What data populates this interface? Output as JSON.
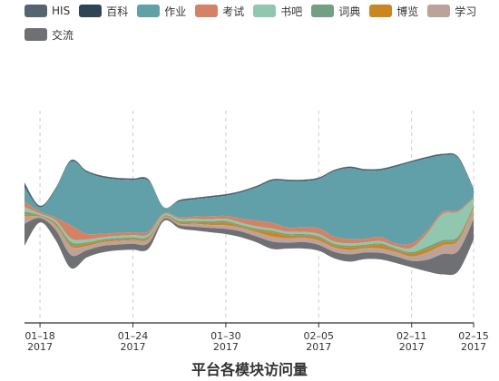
{
  "chart_data": {
    "type": "area",
    "subtype": "streamgraph",
    "title": "平台各模块访问量",
    "x_tick_labels": [
      {
        "date": "2017-01-18",
        "line1": "01–18",
        "line2": "2017"
      },
      {
        "date": "2017-01-24",
        "line1": "01–24",
        "line2": "2017"
      },
      {
        "date": "2017-01-30",
        "line1": "01–30",
        "line2": "2017"
      },
      {
        "date": "2017-02-05",
        "line1": "02–05",
        "line2": "2017"
      },
      {
        "date": "2017-02-11",
        "line1": "02–11",
        "line2": "2017"
      },
      {
        "date": "2017-02-15",
        "line1": "02–15",
        "line2": "2017"
      }
    ],
    "xlim": [
      "2017-01-17",
      "2017-02-15"
    ],
    "grid": "vertical dashed",
    "legend_position": "top-left",
    "x": [
      "2017-01-17",
      "2017-01-18",
      "2017-01-19",
      "2017-01-20",
      "2017-01-21",
      "2017-01-22",
      "2017-01-23",
      "2017-01-24",
      "2017-01-25",
      "2017-01-26",
      "2017-01-27",
      "2017-01-28",
      "2017-01-29",
      "2017-01-30",
      "2017-01-31",
      "2017-02-01",
      "2017-02-02",
      "2017-02-03",
      "2017-02-04",
      "2017-02-05",
      "2017-02-06",
      "2017-02-07",
      "2017-02-08",
      "2017-02-09",
      "2017-02-10",
      "2017-02-11",
      "2017-02-12",
      "2017-02-13",
      "2017-02-14",
      "2017-02-15"
    ],
    "series": [
      {
        "name": "HIS",
        "color": "#546570",
        "values": [
          3,
          1,
          1,
          1,
          1,
          1,
          1,
          1,
          1,
          0,
          1,
          1,
          1,
          1,
          1,
          1,
          1,
          1,
          1,
          1,
          1,
          1,
          1,
          1,
          1,
          1,
          1,
          1,
          1,
          1
        ]
      },
      {
        "name": "百科",
        "color": "#2f4554",
        "values": [
          3,
          1,
          1,
          1,
          1,
          1,
          1,
          1,
          1,
          0,
          1,
          1,
          1,
          1,
          1,
          1,
          1,
          1,
          1,
          1,
          1,
          1,
          1,
          1,
          1,
          1,
          1,
          1,
          1,
          1
        ]
      },
      {
        "name": "作业",
        "color": "#61a0a8",
        "values": [
          20,
          6,
          38,
          88,
          85,
          78,
          74,
          72,
          70,
          8,
          22,
          24,
          26,
          28,
          36,
          46,
          58,
          64,
          64,
          68,
          90,
          98,
          94,
          92,
          106,
          112,
          100,
          78,
          72,
          10
        ]
      },
      {
        "name": "考试",
        "color": "#d48265",
        "values": [
          8,
          3,
          4,
          18,
          8,
          5,
          4,
          4,
          4,
          2,
          2,
          3,
          4,
          4,
          6,
          8,
          8,
          6,
          6,
          8,
          7,
          6,
          5,
          6,
          4,
          6,
          4,
          3,
          2,
          2
        ]
      },
      {
        "name": "书吧",
        "color": "#91c7ae",
        "values": [
          6,
          2,
          3,
          5,
          4,
          3,
          3,
          3,
          3,
          2,
          3,
          3,
          3,
          3,
          3,
          3,
          3,
          3,
          3,
          3,
          3,
          3,
          3,
          3,
          3,
          6,
          18,
          36,
          34,
          10
        ]
      },
      {
        "name": "词典",
        "color": "#749f83",
        "values": [
          4,
          1,
          2,
          3,
          2,
          2,
          2,
          2,
          2,
          1,
          2,
          2,
          2,
          2,
          2,
          2,
          2,
          2,
          2,
          2,
          2,
          2,
          2,
          2,
          2,
          2,
          3,
          3,
          3,
          2
        ]
      },
      {
        "name": "博览",
        "color": "#ca8622",
        "values": [
          3,
          1,
          2,
          3,
          3,
          2,
          2,
          2,
          2,
          1,
          2,
          2,
          3,
          4,
          2,
          3,
          6,
          4,
          3,
          4,
          3,
          4,
          3,
          5,
          3,
          4,
          5,
          4,
          3,
          3
        ]
      },
      {
        "name": "学习",
        "color": "#bda29a",
        "values": [
          10,
          2,
          6,
          12,
          6,
          5,
          5,
          5,
          5,
          2,
          2,
          4,
          4,
          5,
          5,
          6,
          7,
          6,
          6,
          6,
          6,
          6,
          6,
          6,
          6,
          6,
          10,
          12,
          14,
          14
        ]
      },
      {
        "name": "交流",
        "color": "#6e7074",
        "values": [
          30,
          6,
          14,
          18,
          10,
          9,
          8,
          8,
          8,
          3,
          4,
          5,
          6,
          7,
          8,
          8,
          10,
          8,
          9,
          8,
          9,
          10,
          9,
          9,
          9,
          9,
          16,
          28,
          28,
          28
        ]
      }
    ],
    "extra_colors": {
      "axis": "#333333",
      "grid": "#cccccc"
    }
  }
}
